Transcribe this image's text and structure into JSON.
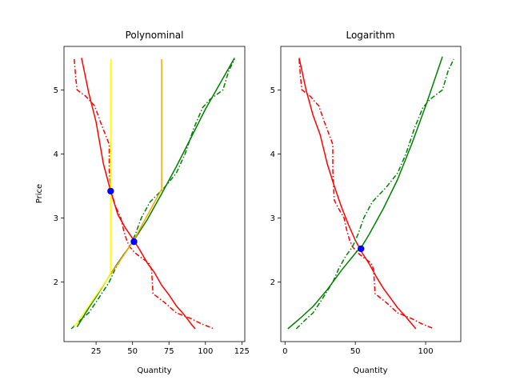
{
  "chart_data": [
    {
      "type": "line",
      "title": "Polynominal",
      "xlabel": "Quantity",
      "ylabel": "Price",
      "xlim": [
        3,
        127
      ],
      "ylim": [
        1.07,
        5.68
      ],
      "xticks": [
        25,
        50,
        75,
        100,
        125
      ],
      "yticks": [
        2,
        3,
        4,
        5
      ],
      "series": [
        {
          "style": "solid",
          "color": "#ff0000",
          "points": [
            [
              15,
              5.5
            ],
            [
              20,
              4.95
            ],
            [
              25,
              4.5
            ],
            [
              30,
              3.85
            ],
            [
              35,
              3.42
            ],
            [
              40,
              3.05
            ],
            [
              45,
              2.85
            ],
            [
              50,
              2.68
            ],
            [
              55,
              2.5
            ],
            [
              60,
              2.3
            ],
            [
              65,
              2.15
            ],
            [
              70,
              1.95
            ],
            [
              75,
              1.8
            ],
            [
              80,
              1.63
            ],
            [
              85,
              1.5
            ],
            [
              90,
              1.35
            ],
            [
              93,
              1.27
            ]
          ]
        },
        {
          "style": "dashdot",
          "color": "#ff0000",
          "points": [
            [
              10,
              5.48
            ],
            [
              11,
              5.2
            ],
            [
              12,
              5.0
            ],
            [
              18,
              4.9
            ],
            [
              24,
              4.75
            ],
            [
              28,
              4.5
            ],
            [
              34,
              4.15
            ],
            [
              34,
              3.75
            ],
            [
              35,
              3.45
            ],
            [
              38,
              3.2
            ],
            [
              42,
              3.0
            ],
            [
              44,
              2.8
            ],
            [
              46,
              2.65
            ],
            [
              48,
              2.55
            ],
            [
              52,
              2.45
            ],
            [
              56,
              2.38
            ],
            [
              61,
              2.3
            ],
            [
              63,
              2.2
            ],
            [
              64,
              1.82
            ],
            [
              72,
              1.68
            ],
            [
              80,
              1.52
            ],
            [
              90,
              1.43
            ],
            [
              97,
              1.35
            ],
            [
              106,
              1.27
            ]
          ]
        },
        {
          "style": "solid",
          "color": "#008000",
          "points": [
            [
              12,
              1.3
            ],
            [
              20,
              1.6
            ],
            [
              25,
              1.77
            ],
            [
              30,
              1.95
            ],
            [
              40,
              2.3
            ],
            [
              50,
              2.62
            ],
            [
              60,
              2.97
            ],
            [
              70,
              3.38
            ],
            [
              80,
              3.8
            ],
            [
              90,
              4.25
            ],
            [
              100,
              4.7
            ],
            [
              110,
              5.1
            ],
            [
              120,
              5.5
            ]
          ]
        },
        {
          "style": "dashdot",
          "color": "#008000",
          "points": [
            [
              8,
              1.27
            ],
            [
              14,
              1.4
            ],
            [
              20,
              1.52
            ],
            [
              26,
              1.72
            ],
            [
              34,
              2.0
            ],
            [
              38,
              2.2
            ],
            [
              43,
              2.4
            ],
            [
              48,
              2.55
            ],
            [
              52,
              2.75
            ],
            [
              56,
              3.0
            ],
            [
              62,
              3.25
            ],
            [
              72,
              3.48
            ],
            [
              80,
              3.7
            ],
            [
              86,
              4.0
            ],
            [
              92,
              4.4
            ],
            [
              98,
              4.72
            ],
            [
              103,
              4.85
            ],
            [
              112,
              5.0
            ],
            [
              116,
              5.3
            ],
            [
              120,
              5.48
            ]
          ]
        },
        {
          "style": "solid",
          "color": "#ffff00",
          "points": [
            [
              10,
              1.3
            ],
            [
              35,
              2.12
            ],
            [
              35,
              5.48
            ]
          ]
        },
        {
          "style": "solid",
          "color": "#ffa500",
          "points": [
            [
              35,
              2.12
            ],
            [
              50,
              2.62
            ],
            [
              70,
              3.45
            ],
            [
              70,
              5.48
            ]
          ]
        }
      ],
      "markers": [
        [
          35,
          3.42
        ],
        [
          51,
          2.63
        ]
      ]
    },
    {
      "type": "line",
      "title": "Logarithm",
      "xlabel": "Quantity",
      "ylabel": "",
      "xlim": [
        -3,
        125
      ],
      "ylim": [
        1.07,
        5.68
      ],
      "xticks": [
        0,
        50,
        100
      ],
      "yticks": [
        2,
        3,
        4,
        5
      ],
      "series": [
        {
          "style": "solid",
          "color": "#ff0000",
          "points": [
            [
              10,
              5.5
            ],
            [
              15,
              5.0
            ],
            [
              20,
              4.6
            ],
            [
              25,
              4.3
            ],
            [
              30,
              3.85
            ],
            [
              35,
              3.5
            ],
            [
              40,
              3.18
            ],
            [
              45,
              2.9
            ],
            [
              50,
              2.65
            ],
            [
              55,
              2.45
            ],
            [
              60,
              2.28
            ],
            [
              65,
              2.08
            ],
            [
              70,
              1.9
            ],
            [
              75,
              1.75
            ],
            [
              80,
              1.6
            ],
            [
              85,
              1.48
            ],
            [
              90,
              1.35
            ],
            [
              93,
              1.27
            ]
          ]
        },
        {
          "style": "dashdot",
          "color": "#ff0000",
          "points": [
            [
              10,
              5.48
            ],
            [
              11,
              5.2
            ],
            [
              12,
              5.0
            ],
            [
              18,
              4.9
            ],
            [
              24,
              4.75
            ],
            [
              28,
              4.5
            ],
            [
              34,
              4.15
            ],
            [
              34,
              3.75
            ],
            [
              35,
              3.28
            ],
            [
              38,
              3.15
            ],
            [
              42,
              3.0
            ],
            [
              44,
              2.8
            ],
            [
              46,
              2.65
            ],
            [
              48,
              2.55
            ],
            [
              52,
              2.45
            ],
            [
              56,
              2.38
            ],
            [
              61,
              2.3
            ],
            [
              63,
              2.2
            ],
            [
              64,
              1.82
            ],
            [
              72,
              1.68
            ],
            [
              80,
              1.52
            ],
            [
              90,
              1.43
            ],
            [
              97,
              1.35
            ],
            [
              106,
              1.27
            ]
          ]
        },
        {
          "style": "solid",
          "color": "#008000",
          "points": [
            [
              2,
              1.27
            ],
            [
              10,
              1.42
            ],
            [
              20,
              1.62
            ],
            [
              30,
              1.88
            ],
            [
              40,
              2.18
            ],
            [
              50,
              2.45
            ],
            [
              55,
              2.57
            ],
            [
              60,
              2.75
            ],
            [
              70,
              3.15
            ],
            [
              80,
              3.6
            ],
            [
              90,
              4.15
            ],
            [
              100,
              4.75
            ],
            [
              112,
              5.52
            ]
          ]
        },
        {
          "style": "dashdot",
          "color": "#008000",
          "points": [
            [
              8,
              1.27
            ],
            [
              14,
              1.4
            ],
            [
              20,
              1.52
            ],
            [
              26,
              1.72
            ],
            [
              34,
              2.0
            ],
            [
              38,
              2.2
            ],
            [
              43,
              2.4
            ],
            [
              48,
              2.55
            ],
            [
              52,
              2.75
            ],
            [
              56,
              3.0
            ],
            [
              62,
              3.25
            ],
            [
              72,
              3.48
            ],
            [
              80,
              3.7
            ],
            [
              86,
              4.0
            ],
            [
              92,
              4.4
            ],
            [
              98,
              4.72
            ],
            [
              103,
              4.85
            ],
            [
              112,
              5.0
            ],
            [
              116,
              5.3
            ],
            [
              120,
              5.48
            ]
          ]
        }
      ],
      "markers": [
        [
          54,
          2.52
        ]
      ]
    }
  ]
}
